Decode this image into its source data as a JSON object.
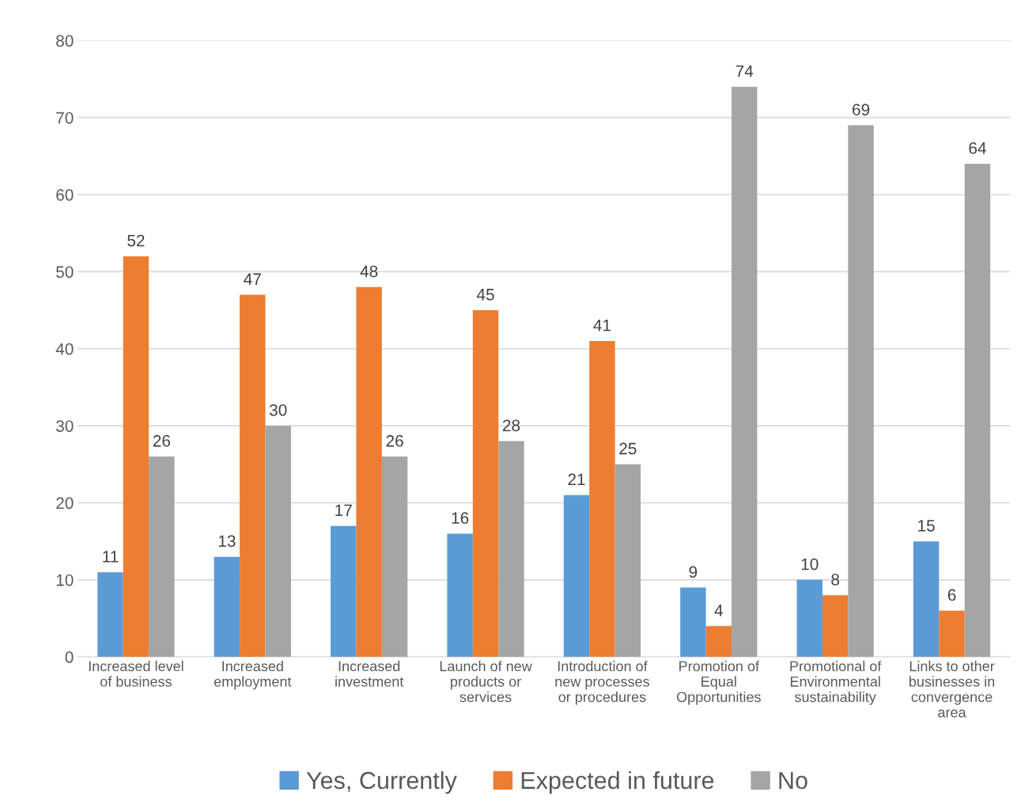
{
  "chart_data": {
    "type": "bar",
    "categories": [
      "Increased level\nof business",
      "Increased\nemployment",
      "Increased\ninvestment",
      "Launch of new\nproducts or\nservices",
      "Introduction of\nnew processes\nor procedures",
      "Promotion of\nEqual\nOpportunities",
      "Promotional of\nEnvironmental\nsustainability",
      "Links to other\nbusinesses in\nconvergence\narea"
    ],
    "series": [
      {
        "name": "Yes, Currently",
        "color": "#5b9bd5",
        "values": [
          11,
          13,
          17,
          16,
          21,
          9,
          10,
          15
        ]
      },
      {
        "name": "Expected in future",
        "color": "#ed7d31",
        "values": [
          52,
          47,
          48,
          45,
          41,
          4,
          8,
          6
        ]
      },
      {
        "name": "No",
        "color": "#a5a5a5",
        "values": [
          26,
          30,
          26,
          28,
          25,
          74,
          69,
          64
        ]
      }
    ],
    "ylim": [
      0,
      80
    ],
    "yticks": [
      0,
      10,
      20,
      30,
      40,
      50,
      60,
      70,
      80
    ],
    "grid": "y",
    "legend": "bottom",
    "data_labels": true
  }
}
